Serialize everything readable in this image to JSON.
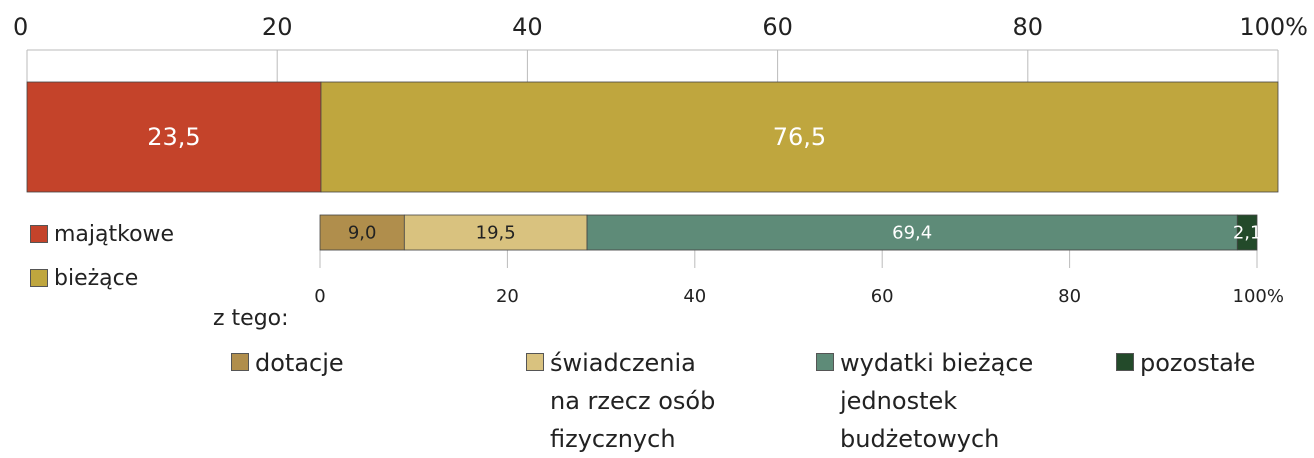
{
  "chart_data": [
    {
      "type": "stacked-bar-horizontal",
      "series": [
        {
          "name": "majątkowe",
          "color": "#c4432a",
          "values": [
            23.5
          ],
          "value_labels": [
            "23,5"
          ]
        },
        {
          "name": "bieżące",
          "color": "#bfa63e",
          "values": [
            76.5
          ],
          "value_labels": [
            "76,5"
          ]
        }
      ],
      "xlim": [
        0,
        100
      ],
      "xticks": [
        0,
        20,
        40,
        60,
        80,
        {
          "value": 100,
          "label": "100%"
        }
      ]
    },
    {
      "type": "stacked-bar-horizontal",
      "annotation": "z tego:",
      "series": [
        {
          "name": "dotacje",
          "color": "#b08e4c",
          "values": [
            9.0
          ],
          "value_labels": [
            "9,0"
          ]
        },
        {
          "name": "świadczenia\nna rzecz osób\nfizycznych",
          "color": "#d9c27f",
          "values": [
            19.5
          ],
          "value_labels": [
            "19,5"
          ]
        },
        {
          "name": "wydatki bieżące\njednostek\nbudżetowych",
          "color": "#5e8b78",
          "values": [
            69.4
          ],
          "value_labels": [
            "69,4"
          ]
        },
        {
          "name": "pozostałe",
          "color": "#234a2a",
          "values": [
            2.1
          ],
          "value_labels": [
            "2,1"
          ]
        }
      ],
      "xlim": [
        0,
        100
      ],
      "xticks": [
        0,
        20,
        40,
        60,
        80,
        {
          "value": 100,
          "label": "100%"
        }
      ]
    }
  ]
}
